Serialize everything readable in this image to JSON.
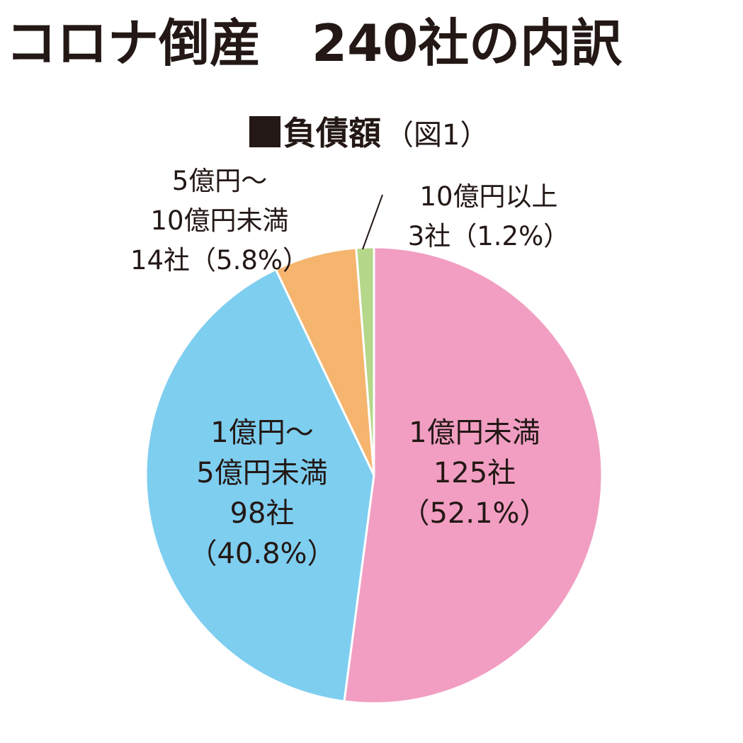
{
  "title": "コロナ倒産　240社の内訳",
  "chart_title": {
    "main": "負債額",
    "note": "（図1）"
  },
  "chart_data": {
    "type": "pie",
    "title": "負債額（図1）",
    "total": 240,
    "slices": [
      {
        "category_lines": [
          "1億円未満"
        ],
        "count_label": "125社",
        "percent_label": "（52.1%）",
        "count": 125,
        "percent": 52.1,
        "color": "#f19ec2"
      },
      {
        "category_lines": [
          "1億円～",
          "5億円未満"
        ],
        "count_label": "98社",
        "percent_label": "（40.8%）",
        "count": 98,
        "percent": 40.8,
        "color": "#7ecef0"
      },
      {
        "category_lines": [
          "5億円～",
          "10億円未満"
        ],
        "count_label": "14社",
        "percent_label": "（5.8%）",
        "count": 14,
        "percent": 5.8,
        "color": "#f5b56e"
      },
      {
        "category_lines": [
          "10億円以上"
        ],
        "count_label": "3社",
        "percent_label": "（1.2%）",
        "count": 3,
        "percent": 1.2,
        "color": "#b4d789"
      }
    ]
  }
}
